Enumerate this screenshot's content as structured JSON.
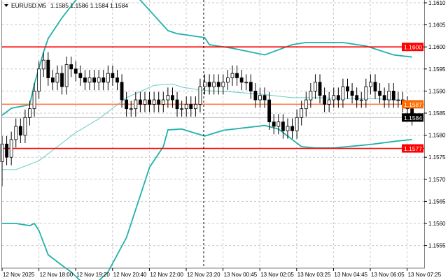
{
  "header": {
    "menu_icon": "triangle-down-icon",
    "symbol": "EURUSD.M5",
    "ohlc": "1.1585 1.1586 1.1584 1.1584"
  },
  "colors": {
    "bull_bear_candle": "#000000",
    "bollinger_outer": "#20b2aa",
    "bollinger_middle": "#66cdc4",
    "resistance_line": "#ff0000",
    "support_line": "#ff0000",
    "pivot_line": "#ff7f50",
    "bid_line": "#c0c0c0",
    "grid": "#c8c8c8"
  },
  "chart_data": {
    "type": "candlestick",
    "ylim": [
      1.155,
      1.1612
    ],
    "y_ticks": [
      "1.1610",
      "1.1605",
      "1.1600",
      "1.1595",
      "1.1590",
      "1.1585",
      "1.1580",
      "1.1575",
      "1.1570",
      "1.1565",
      "1.1560",
      "1.1555"
    ],
    "x_ticks": [
      "12 Nov 2025",
      "12 Nov 18:00",
      "12 Nov 19:20",
      "12 Nov 20:40",
      "12 Nov 22:00",
      "12 Nov 23:20",
      "13 Nov 00:45",
      "13 Nov 02:05",
      "13 Nov 03:25",
      "13 Nov 04:45",
      "13 Nov 06:05",
      "13 Nov 07:25"
    ],
    "grid": true,
    "first_open": 1.1574,
    "first_low": 1.15684,
    "close": [
      1.1578,
      1.1575,
      1.1579,
      1.1582,
      1.158,
      1.1584,
      1.1586,
      1.159,
      1.1595,
      1.1597,
      1.1593,
      1.1592,
      1.1594,
      1.1591,
      1.1596,
      1.1595,
      1.1594,
      1.1593,
      1.1592,
      1.1593,
      1.1592,
      1.1593,
      1.1592,
      1.1594,
      1.1593,
      1.1592,
      1.1588,
      1.1586,
      1.1586,
      1.1588,
      1.1587,
      1.1588,
      1.1587,
      1.1588,
      1.1587,
      1.1588,
      1.1589,
      1.1588,
      1.1586,
      1.1586,
      1.1587,
      1.1586,
      1.1587,
      1.1591,
      1.1592,
      1.1591,
      1.1592,
      1.1591,
      1.1592,
      1.1593,
      1.1594,
      1.1593,
      1.1592,
      1.1592,
      1.159,
      1.1588,
      1.1589,
      1.1588,
      1.1583,
      1.1582,
      1.1583,
      1.1581,
      1.1582,
      1.1581,
      1.1584,
      1.1586,
      1.1588,
      1.159,
      1.1592,
      1.1589,
      1.1587,
      1.1588,
      1.1589,
      1.1588,
      1.1591,
      1.159,
      1.1589,
      1.1588,
      1.1588,
      1.1591,
      1.1592,
      1.159,
      1.1589,
      1.1588,
      1.159,
      1.1588,
      1.1588,
      1.1587,
      1.1586,
      1.1584
    ],
    "bollinger": {
      "upper": [
        [
          0,
          1.15845
        ],
        [
          2,
          1.15861
        ],
        [
          6,
          1.15869
        ],
        [
          7,
          1.15916
        ],
        [
          9,
          1.15988
        ],
        [
          10,
          1.16019
        ],
        [
          13,
          1.16066
        ],
        [
          16,
          1.16106
        ],
        [
          22,
          1.162
        ],
        [
          30,
          1.16106
        ],
        [
          36,
          1.16037
        ],
        [
          38,
          1.1603
        ],
        [
          44,
          1.16021
        ],
        [
          45,
          1.16005
        ],
        [
          50,
          1.15997
        ],
        [
          57,
          1.15982
        ],
        [
          63,
          1.16005
        ],
        [
          66,
          1.1601
        ],
        [
          74,
          1.1601
        ],
        [
          79,
          1.16002
        ],
        [
          85,
          1.15982
        ],
        [
          89,
          1.15977
        ]
      ],
      "middle": [
        [
          0,
          1.15722
        ],
        [
          3,
          1.15722
        ],
        [
          8,
          1.15742
        ],
        [
          12,
          1.15774
        ],
        [
          16,
          1.15806
        ],
        [
          21,
          1.15837
        ],
        [
          27,
          1.15885
        ],
        [
          33,
          1.15913
        ],
        [
          37,
          1.15916
        ],
        [
          39,
          1.15909
        ],
        [
          44,
          1.15901
        ],
        [
          50,
          1.15898
        ],
        [
          56,
          1.15893
        ],
        [
          63,
          1.15885
        ],
        [
          68,
          1.15885
        ],
        [
          76,
          1.15883
        ],
        [
          82,
          1.15882
        ],
        [
          89,
          1.15877
        ]
      ],
      "lower": [
        [
          0,
          1.156
        ],
        [
          3,
          1.156
        ],
        [
          6,
          1.15595
        ],
        [
          7,
          1.156
        ],
        [
          8,
          1.15584
        ],
        [
          10,
          1.15529
        ],
        [
          13,
          1.15505
        ],
        [
          15,
          1.1549
        ],
        [
          19,
          1.1545
        ],
        [
          23,
          1.1549
        ],
        [
          27,
          1.15568
        ],
        [
          30,
          1.15663
        ],
        [
          32,
          1.15727
        ],
        [
          35,
          1.15774
        ],
        [
          36,
          1.15812
        ],
        [
          39,
          1.15814
        ],
        [
          44,
          1.15798
        ],
        [
          48,
          1.15811
        ],
        [
          57,
          1.15822
        ],
        [
          60,
          1.15814
        ],
        [
          65,
          1.15774
        ],
        [
          68,
          1.15771
        ],
        [
          72,
          1.15771
        ],
        [
          80,
          1.15779
        ],
        [
          86,
          1.15787
        ],
        [
          89,
          1.1579
        ]
      ]
    },
    "levels": [
      {
        "label": "1.1600",
        "price": 1.16,
        "kind": "resistance"
      },
      {
        "label": "1.1587",
        "price": 1.1587,
        "kind": "pivot"
      },
      {
        "label": "1.1584",
        "price": 1.1584,
        "kind": "bid"
      },
      {
        "label": "1.1577",
        "price": 1.1577,
        "kind": "support"
      }
    ]
  }
}
